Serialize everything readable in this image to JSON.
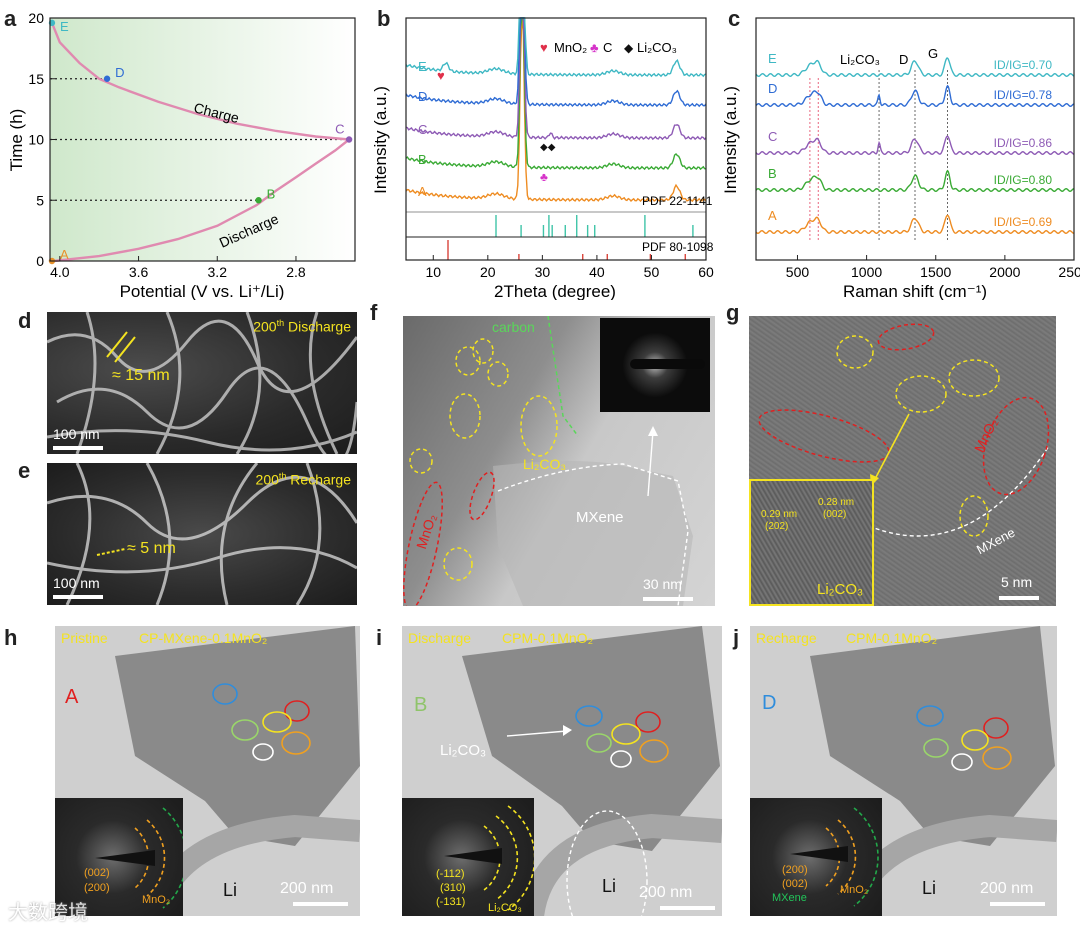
{
  "panels": {
    "a": "a",
    "b": "b",
    "c": "c",
    "d": "d",
    "e": "e",
    "f": "f",
    "g": "g",
    "h": "h",
    "i": "i",
    "j": "j"
  },
  "chart_data": [
    {
      "id": "a",
      "type": "line",
      "xlabel": "Potential (V vs. Li⁺/Li)",
      "ylabel": "Time (h)",
      "xlim": [
        4.05,
        2.5
      ],
      "ylim": [
        0,
        20
      ],
      "xticks": [
        "4.0",
        "3.6",
        "3.2",
        "2.8"
      ],
      "xtick_values": [
        4.0,
        3.6,
        3.2,
        2.8
      ],
      "yticks": [
        "0",
        "5",
        "10",
        "15",
        "20"
      ],
      "ytick_values": [
        0,
        5,
        10,
        15,
        20
      ],
      "series": [
        {
          "name": "Discharge",
          "x": [
            4.03,
            3.8,
            3.6,
            3.4,
            3.2,
            3.0,
            2.9,
            2.8,
            2.7,
            2.6,
            2.53
          ],
          "y": [
            0,
            0.4,
            1.0,
            1.8,
            2.9,
            4.6,
            5.8,
            6.9,
            8.0,
            9.1,
            10.0
          ]
        },
        {
          "name": "Charge",
          "x": [
            2.53,
            2.7,
            2.9,
            3.1,
            3.3,
            3.5,
            3.7,
            3.8,
            3.9,
            4.0,
            4.04
          ],
          "y": [
            10.0,
            10.25,
            10.7,
            11.3,
            12.1,
            13.1,
            14.3,
            15.0,
            16.3,
            18.0,
            19.6
          ]
        }
      ],
      "points": [
        {
          "label": "A",
          "x": 4.04,
          "y": 0,
          "color": "#e8912a"
        },
        {
          "label": "B",
          "x": 2.99,
          "y": 5,
          "color": "#3aaa35"
        },
        {
          "label": "C",
          "x": 2.53,
          "y": 10,
          "color": "#8e5bb5"
        },
        {
          "label": "D",
          "x": 3.76,
          "y": 15,
          "color": "#2f6cd4"
        },
        {
          "label": "E",
          "x": 4.04,
          "y": 19.6,
          "color": "#3fb8c4"
        }
      ],
      "annotations": [
        "Charge",
        "Discharge"
      ],
      "colors": {
        "curve": "#e08ab0",
        "bg": "#e3f2e1"
      }
    },
    {
      "id": "b",
      "type": "line",
      "xlabel": "2Theta (degree)",
      "ylabel": "Intensity (a.u.)",
      "xlim": [
        5,
        60
      ],
      "xticks": [
        "10",
        "20",
        "30",
        "40",
        "50",
        "60"
      ],
      "xtick_values": [
        10,
        20,
        30,
        40,
        50,
        60
      ],
      "series": [
        {
          "name": "A",
          "color": "#ee8c22"
        },
        {
          "name": "B",
          "color": "#3aaa35"
        },
        {
          "name": "C",
          "color": "#8e5bb5"
        },
        {
          "name": "D",
          "color": "#2f6cd4"
        },
        {
          "name": "E",
          "color": "#3fb8c4"
        }
      ],
      "main_peak_2theta": 26.3,
      "secondary_peak_2theta": 54.6,
      "legend": [
        "MnO₂",
        "C",
        "Li₂CO₃"
      ],
      "legend_colors": [
        "#e0304a",
        "#d633c9",
        "#111111"
      ],
      "reference_patterns": [
        {
          "label": "PDF 22-1141",
          "color": "#3fc4a8",
          "peaks": [
            21.5,
            26.1,
            30.2,
            31.2,
            31.8,
            34.2,
            36.3,
            38.3,
            39.6,
            48.8,
            57.6
          ]
        },
        {
          "label": "PDF 80-1098",
          "color": "#d9433a",
          "peaks": [
            12.7,
            25.7,
            37.4,
            41.9,
            49.8,
            56.2
          ]
        }
      ]
    },
    {
      "id": "c",
      "type": "line",
      "xlabel": "Raman shift (cm⁻¹)",
      "ylabel": "Intensity (a.u.)",
      "xlim": [
        200,
        2500
      ],
      "xticks": [
        "500",
        "1000",
        "1500",
        "2000",
        "2500"
      ],
      "xtick_values": [
        500,
        1000,
        1500,
        2000,
        2500
      ],
      "peak_labels": [
        "Li₂CO₃",
        "D",
        "G"
      ],
      "peak_positions": [
        1090,
        1350,
        1585
      ],
      "series": [
        {
          "name": "A",
          "ratio": "ID/IG=0.69",
          "color": "#ee8c22"
        },
        {
          "name": "B",
          "ratio": "ID/IG=0.80",
          "color": "#3aaa35"
        },
        {
          "name": "C",
          "ratio": "ID/IG=0.86",
          "color": "#8e5bb5"
        },
        {
          "name": "D",
          "ratio": "ID/IG=0.78",
          "color": "#2f6cd4"
        },
        {
          "name": "E",
          "ratio": "ID/IG=0.70",
          "color": "#3fb8c4"
        }
      ]
    }
  ],
  "images": {
    "d": {
      "caption": "200",
      "caption_sup": "th",
      "caption_rest": " Discharge",
      "measure": "≈ 15 nm",
      "scale": "100 nm"
    },
    "e": {
      "caption": "200",
      "caption_sup": "th",
      "caption_rest": " Recharge",
      "measure": "≈ 5 nm",
      "scale": "100 nm"
    },
    "f": {
      "carbon": "carbon",
      "li2co3": "Li₂CO₃",
      "mno2": "MnO₂",
      "mxene": "MXene",
      "scale": "30 nm"
    },
    "g": {
      "mno2": "MnO₂",
      "mxene": "MXene",
      "d1": "0.29 nm",
      "p1": "(202)",
      "d2": "0.28 nm",
      "p2": "(002)",
      "li2co3": "Li₂CO₃",
      "scale": "5 nm"
    },
    "h": {
      "state": "Pristine",
      "sample": "CP-MXene-0.1MnO₂",
      "marker": "A",
      "li": "Li",
      "scale": "200 nm",
      "r1": "(002)",
      "r2": "(200)",
      "phase": "MnO₂"
    },
    "i": {
      "state": "Discharge",
      "sample": "CPM-0.1MnO₂",
      "marker": "B",
      "li": "Li",
      "scale": "200 nm",
      "arrow_label": "Li₂CO₃",
      "r1": "(-112)",
      "r2": "(310)",
      "r3": "(-131)",
      "phase": "Li₂CO₃"
    },
    "j": {
      "state": "Recharge",
      "sample": "CPM-0.1MnO₂",
      "marker": "D",
      "li": "Li",
      "scale": "200 nm",
      "r1": "(200)",
      "r2": "(002)",
      "phase1": "MXene",
      "phase2": "MnO₂"
    }
  },
  "watermark": "大数跨境"
}
